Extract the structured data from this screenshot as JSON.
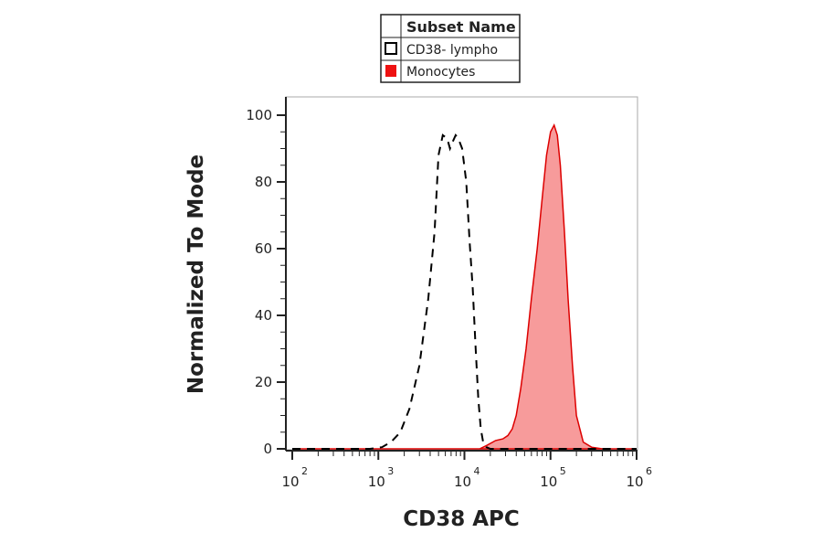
{
  "chart_data": {
    "type": "area",
    "xlabel": "CD38 APC",
    "ylabel": "Normalized To Mode",
    "xscale": "log",
    "xlim": [
      100,
      1000000
    ],
    "ylim": [
      0,
      100
    ],
    "x_ticks": [
      {
        "base": "10",
        "exp": "2",
        "value": 100
      },
      {
        "base": "10",
        "exp": "3",
        "value": 1000
      },
      {
        "base": "10",
        "exp": "4",
        "value": 10000
      },
      {
        "base": "10",
        "exp": "5",
        "value": 100000
      },
      {
        "base": "10",
        "exp": "6",
        "value": 1000000
      }
    ],
    "y_ticks": [
      {
        "label": "100",
        "value": 100
      },
      {
        "label": "80",
        "value": 80
      },
      {
        "label": "60",
        "value": 60
      },
      {
        "label": "40",
        "value": 40
      },
      {
        "label": "20",
        "value": 20
      },
      {
        "label": "0",
        "value": 0
      }
    ],
    "legend": {
      "header": "Subset Name",
      "position": "top-center"
    },
    "series": [
      {
        "name": "CD38- lympho",
        "style": "dashed-outline",
        "color": "#000000",
        "x": [
          100,
          800,
          1100,
          1400,
          1800,
          2300,
          3000,
          3800,
          4500,
          5000,
          5600,
          6300,
          6800,
          7300,
          7900,
          8500,
          9400,
          10500,
          11500,
          12500,
          13500,
          14500,
          15500,
          16500,
          18000,
          20000,
          30000,
          1000000
        ],
        "y": [
          0,
          0,
          0.5,
          2,
          5,
          12,
          25,
          45,
          65,
          88,
          94,
          93,
          90,
          92,
          94,
          93,
          90,
          80,
          62,
          48,
          30,
          15,
          6,
          2,
          0.5,
          0,
          0,
          0
        ]
      },
      {
        "name": "Monocytes",
        "style": "filled",
        "color": "#dd0000",
        "fill": "#f79b9b",
        "x": [
          100,
          15000,
          18000,
          23000,
          28000,
          32000,
          36000,
          40000,
          45000,
          52000,
          60000,
          70000,
          80000,
          90000,
          100000,
          110000,
          120000,
          130000,
          145000,
          160000,
          180000,
          200000,
          240000,
          300000,
          400000,
          1000000
        ],
        "y": [
          0,
          0,
          1,
          2.5,
          3,
          4,
          6,
          10,
          18,
          30,
          45,
          60,
          75,
          88,
          95,
          97,
          94,
          85,
          65,
          45,
          25,
          10,
          2,
          0.5,
          0,
          0
        ]
      }
    ]
  }
}
